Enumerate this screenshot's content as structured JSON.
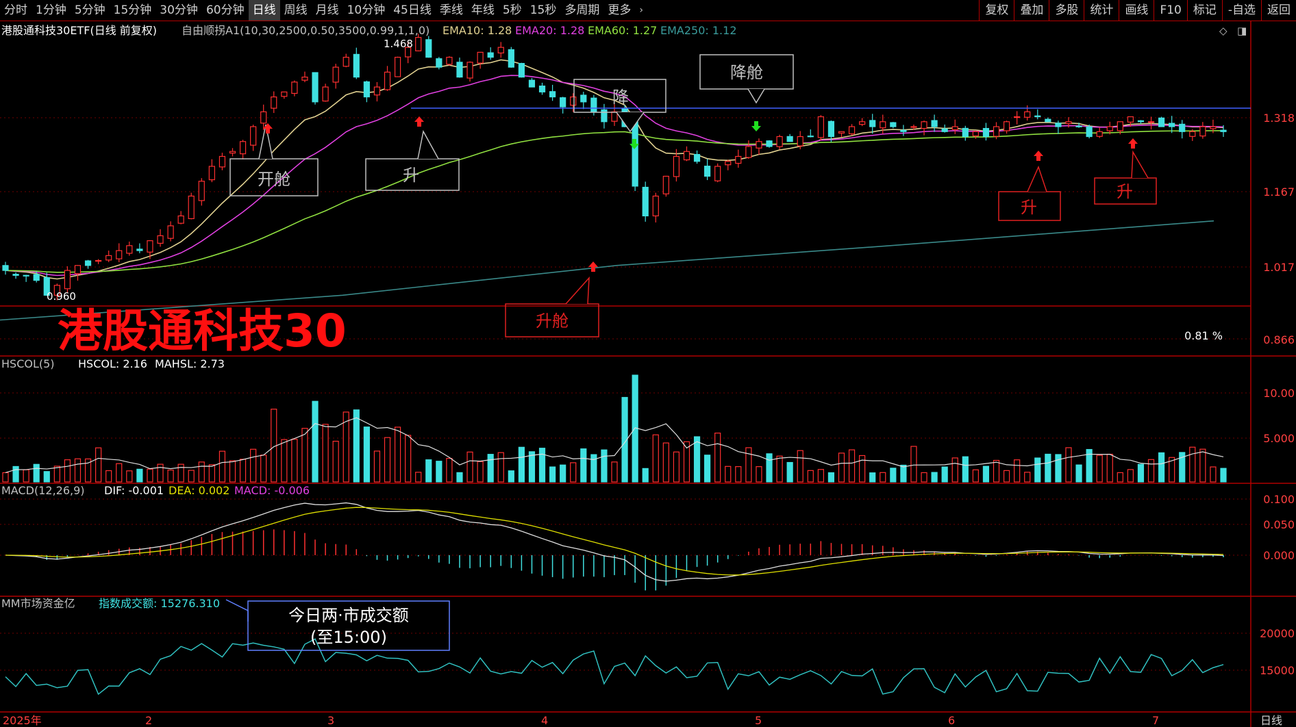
{
  "toolbar": {
    "left": [
      "分时",
      "1分钟",
      "5分钟",
      "15分钟",
      "30分钟",
      "60分钟",
      "日线",
      "周线",
      "月线",
      "10分钟",
      "45日线",
      "季线",
      "年线",
      "5秒",
      "15秒",
      "多周期",
      "更多"
    ],
    "active_index": 6,
    "right": [
      "复权",
      "叠加",
      "多股",
      "统计",
      "画线",
      "F10",
      "标记",
      "-自选",
      "返回"
    ]
  },
  "colors": {
    "up": "#ff3030",
    "down": "#40e0e0",
    "ema10": "#e0d090",
    "ema20": "#e040e0",
    "ema60": "#90e040",
    "ema250": "#3a8a8a",
    "grid": "#b00000",
    "yellow": "#e0e000"
  },
  "price_panel": {
    "title": "港股通科技30ETF(日线 前复权)",
    "indicator": "自由顺拐A1(10,30,2500,0.50,3500,0.99,1,1,0)",
    "ema10_label": "EMA10: 1.28",
    "ema20_label": "EMA20: 1.28",
    "ema60_label": "EMA60: 1.27",
    "ema250_label": "EMA250: 1.12",
    "y_ticks": [
      "1.318",
      "1.167",
      "1.017",
      "0.866"
    ],
    "high_label": "1.468",
    "low_label": "0.960",
    "watermark": "港股通科技30",
    "pct_label": "0.81 %",
    "annotations": [
      "开舱",
      "升",
      "降",
      "降舱",
      "升舱",
      "升",
      "升"
    ]
  },
  "volume_panel": {
    "title": "HSCOL(5)",
    "hscol": "HSCOL: 2.16",
    "mahsl": "MAHSL: 2.73",
    "y_ticks": [
      "10.00",
      "5.000"
    ]
  },
  "macd_panel": {
    "title": "MACD(12,26,9)",
    "dif": "DIF: -0.001",
    "dea": "DEA: 0.002",
    "macd": "MACD: -0.006",
    "y_ticks": [
      "0.100",
      "0.050",
      "0.000"
    ]
  },
  "fund_panel": {
    "title": "MM市场资金亿",
    "label": "指数成交额: 15276.310",
    "y_ticks": [
      "20000",
      "15000"
    ],
    "callout_line1": "今日两·市成交额",
    "callout_line2": "(至15:00)"
  },
  "x_axis": {
    "labels": [
      "2025年",
      "2",
      "3",
      "4",
      "5",
      "6",
      "7"
    ],
    "period": "日线"
  },
  "chart_data": {
    "type": "candlestick",
    "title": "港股通科技30ETF(日线 前复权)",
    "series_names": [
      "EMA10",
      "EMA20",
      "EMA60",
      "EMA250"
    ],
    "closes": [
      1.01,
      1.0,
      1.0,
      0.99,
      0.96,
      0.98,
      1.01,
      1.02,
      1.02,
      1.03,
      1.04,
      1.05,
      1.06,
      1.05,
      1.07,
      1.08,
      1.1,
      1.12,
      1.16,
      1.19,
      1.22,
      1.24,
      1.25,
      1.27,
      1.3,
      1.33,
      1.36,
      1.37,
      1.39,
      1.4,
      1.35,
      1.38,
      1.42,
      1.44,
      1.4,
      1.36,
      1.38,
      1.41,
      1.44,
      1.46,
      1.48,
      1.44,
      1.42,
      1.44,
      1.4,
      1.43,
      1.45,
      1.44,
      1.46,
      1.42,
      1.4,
      1.38,
      1.37,
      1.36,
      1.34,
      1.36,
      1.35,
      1.33,
      1.31,
      1.33,
      1.3,
      1.18,
      1.12,
      1.16,
      1.2,
      1.24,
      1.25,
      1.23,
      1.2,
      1.22,
      1.23,
      1.24,
      1.26,
      1.27,
      1.26,
      1.28,
      1.27,
      1.28,
      1.28,
      1.32,
      1.28,
      1.29,
      1.3,
      1.31,
      1.3,
      1.31,
      1.3,
      1.29,
      1.3,
      1.31,
      1.3,
      1.29,
      1.3,
      1.28,
      1.29,
      1.28,
      1.3,
      1.31,
      1.32,
      1.33,
      1.32,
      1.31,
      1.3,
      1.31,
      1.3,
      1.28,
      1.29,
      1.3,
      1.31,
      1.32,
      1.31,
      1.31,
      1.3,
      1.3,
      1.29,
      1.29,
      1.3,
      1.3,
      1.29
    ]
  }
}
